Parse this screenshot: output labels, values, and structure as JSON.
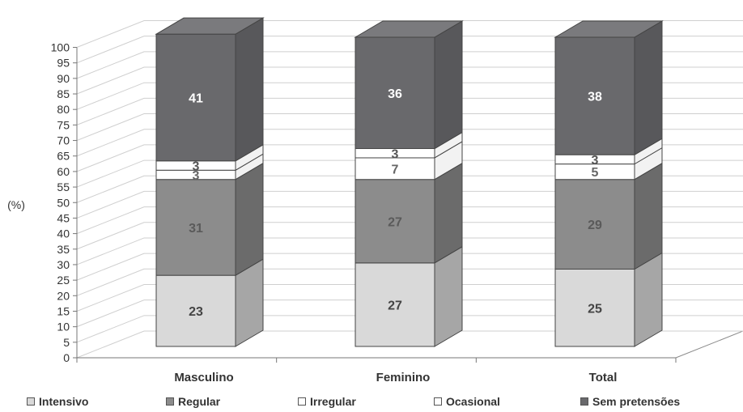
{
  "chart_data": {
    "type": "bar",
    "stacked": true,
    "three_d": true,
    "ylabel": "(%)",
    "ylim": [
      0,
      100
    ],
    "ytick_step": 5,
    "categories": [
      "Masculino",
      "Feminino",
      "Total"
    ],
    "series": [
      {
        "name": "Intensivo",
        "values": [
          23,
          27,
          25
        ],
        "color": "#d9d9d9",
        "side": "#a6a6a6",
        "top": "#ececec",
        "label_color": "#444444"
      },
      {
        "name": "Regular",
        "values": [
          31,
          27,
          29
        ],
        "color": "#8c8c8c",
        "side": "#6b6b6b",
        "top": "#a3a3a3",
        "label_color": "#5a5a5a"
      },
      {
        "name": "Irregular",
        "values": [
          3,
          7,
          5
        ],
        "color": "#ffffff",
        "side": "#f2f2f2",
        "top": "#ffffff",
        "label_color": "#666666"
      },
      {
        "name": "Ocasional",
        "values": [
          3,
          3,
          3
        ],
        "color": "#ffffff",
        "side": "#f2f2f2",
        "top": "#ffffff",
        "label_color": "#555555"
      },
      {
        "name": "Sem pretensões",
        "values": [
          41,
          36,
          38
        ],
        "color": "#69696c",
        "side": "#58585b",
        "top": "#7a7a7d",
        "label_color": "#ffffff"
      }
    ],
    "grid": true,
    "legend_position": "bottom"
  }
}
